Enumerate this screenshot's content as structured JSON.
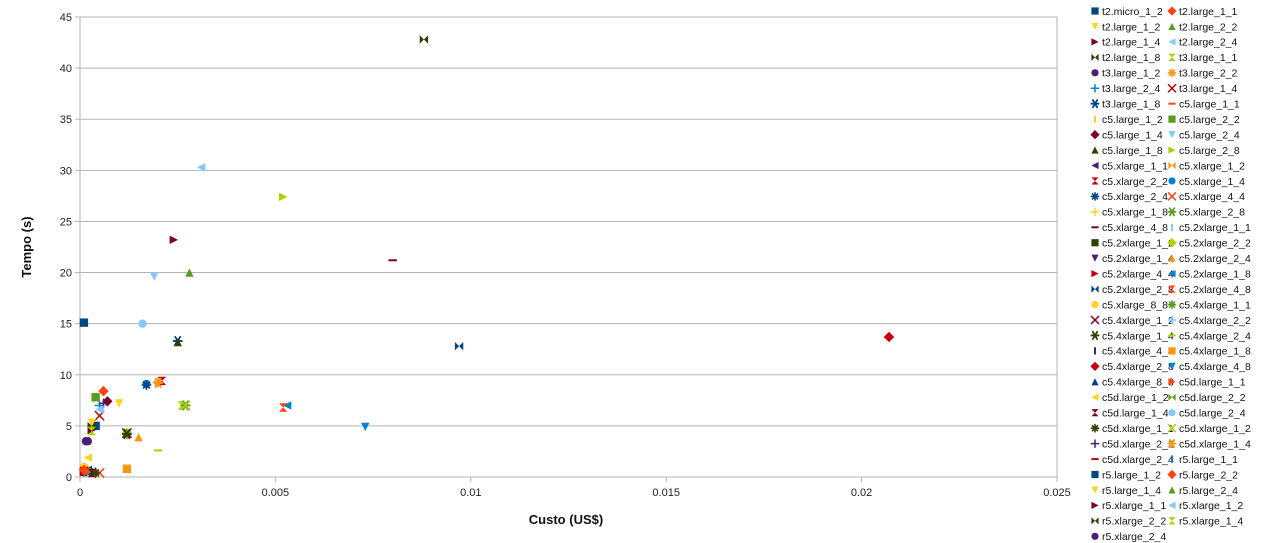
{
  "chart_data": {
    "type": "scatter",
    "title": "",
    "xlabel": "Custo (US$)",
    "ylabel": "Tempo (s)",
    "xlim": [
      0,
      0.025
    ],
    "ylim": [
      0,
      45
    ],
    "x_ticks": [
      "0",
      "0.005",
      "0.01",
      "0.015",
      "0.02",
      "0.025"
    ],
    "x_tick_values": [
      0,
      0.005,
      0.01,
      0.015,
      0.02,
      0.025
    ],
    "y_ticks": [
      "0",
      "5",
      "10",
      "15",
      "20",
      "25",
      "30",
      "35",
      "40",
      "45"
    ],
    "y_tick_values": [
      0,
      5,
      10,
      15,
      20,
      25,
      30,
      35,
      40,
      45
    ],
    "grid": "horizontal",
    "legend_position": "right",
    "series": [
      {
        "name": "t2.micro_1_2",
        "color": "#004586",
        "marker": "square",
        "points": [
          [
            0.0001,
            15.1
          ]
        ]
      },
      {
        "name": "t2.large_1_1",
        "color": "#ff420e",
        "marker": "diamond",
        "points": [
          [
            0.0006,
            8.4
          ]
        ]
      },
      {
        "name": "t2.large_1_2",
        "color": "#ffd320",
        "marker": "tri-down",
        "points": [
          [
            0.001,
            7.2
          ]
        ]
      },
      {
        "name": "t2.large_2_2",
        "color": "#579d1c",
        "marker": "tri-up",
        "points": [
          [
            0.0028,
            20.0
          ]
        ]
      },
      {
        "name": "t2.large_1_4",
        "color": "#7e0021",
        "marker": "tri-right",
        "points": [
          [
            0.0024,
            23.2
          ]
        ]
      },
      {
        "name": "t2.large_2_4",
        "color": "#83caff",
        "marker": "tri-left",
        "points": [
          [
            0.0031,
            30.3
          ]
        ]
      },
      {
        "name": "t2.large_1_8",
        "color": "#314004",
        "marker": "bowtie",
        "points": [
          [
            0.0088,
            42.8
          ]
        ]
      },
      {
        "name": "t3.large_1_1",
        "color": "#aecf00",
        "marker": "hourglass",
        "points": [
          [
            0.0026,
            7.0
          ]
        ]
      },
      {
        "name": "t3.large_1_2",
        "color": "#4b1f6f",
        "marker": "circle",
        "points": [
          [
            0.00015,
            3.5
          ]
        ]
      },
      {
        "name": "t3.large_2_2",
        "color": "#ff950e",
        "marker": "star",
        "points": [
          [
            0.002,
            9.3
          ]
        ]
      },
      {
        "name": "t3.large_2_4",
        "color": "#0084d1",
        "marker": "plus",
        "points": [
          [
            0.0005,
            7.0
          ]
        ]
      },
      {
        "name": "t3.large_1_4",
        "color": "#c5000b",
        "marker": "x",
        "points": [
          [
            0.0005,
            6.0
          ]
        ]
      },
      {
        "name": "t3.large_1_8",
        "color": "#004586",
        "marker": "asterisk",
        "points": [
          [
            0.0025,
            13.3
          ]
        ]
      },
      {
        "name": "c5.large_1_1",
        "color": "#ff420e",
        "marker": "hbar",
        "points": [
          [
            0.0003,
            0.6
          ]
        ]
      },
      {
        "name": "c5.large_1_2",
        "color": "#ffd320",
        "marker": "vbar",
        "points": [
          [
            0.0003,
            5.2
          ]
        ]
      },
      {
        "name": "c5.large_2_2",
        "color": "#579d1c",
        "marker": "square",
        "points": [
          [
            0.0004,
            7.8
          ]
        ]
      },
      {
        "name": "c5.large_1_4",
        "color": "#7e0021",
        "marker": "diamond",
        "points": [
          [
            0.0007,
            7.4
          ]
        ]
      },
      {
        "name": "c5.large_2_4",
        "color": "#83caff",
        "marker": "tri-down",
        "points": [
          [
            0.0019,
            19.6
          ]
        ]
      },
      {
        "name": "c5.large_1_8",
        "color": "#314004",
        "marker": "tri-up",
        "points": [
          [
            0.0025,
            13.2
          ]
        ]
      },
      {
        "name": "c5.large_2_8",
        "color": "#aecf00",
        "marker": "tri-right",
        "points": [
          [
            0.0052,
            27.4
          ]
        ]
      },
      {
        "name": "c5.xlarge_1_1",
        "color": "#4b1f6f",
        "marker": "tri-left",
        "points": [
          [
            0.0002,
            0.7
          ]
        ]
      },
      {
        "name": "c5.xlarge_1_2",
        "color": "#ff950e",
        "marker": "bowtie",
        "points": [
          [
            0.0003,
            0.5
          ]
        ]
      },
      {
        "name": "c5.xlarge_2_2",
        "color": "#c5000b",
        "marker": "hourglass",
        "points": [
          [
            0.0021,
            9.4
          ]
        ]
      },
      {
        "name": "c5.xlarge_1_4",
        "color": "#0084d1",
        "marker": "circle",
        "points": [
          [
            0.0017,
            9.1
          ]
        ]
      },
      {
        "name": "c5.xlarge_2_4",
        "color": "#004586",
        "marker": "star",
        "points": [
          [
            0.0017,
            9.0
          ]
        ]
      },
      {
        "name": "c5.xlarge_4_4",
        "color": "#ff420e",
        "marker": "x",
        "points": [
          [
            0.0005,
            0.4
          ]
        ]
      },
      {
        "name": "c5.xlarge_1_8",
        "color": "#ffd320",
        "marker": "plus",
        "points": [
          [
            0.0002,
            0.8
          ]
        ]
      },
      {
        "name": "c5.xlarge_2_8",
        "color": "#579d1c",
        "marker": "asterisk",
        "points": [
          [
            0.0027,
            7.0
          ]
        ]
      },
      {
        "name": "c5.xlarge_4_8",
        "color": "#7e0021",
        "marker": "hbar",
        "points": [
          [
            0.008,
            21.2
          ]
        ]
      },
      {
        "name": "c5.2xlarge_1_1",
        "color": "#83caff",
        "marker": "vbar",
        "points": [
          [
            0.0001,
            0.6
          ]
        ]
      },
      {
        "name": "c5.2xlarge_1_2",
        "color": "#314004",
        "marker": "square",
        "points": [
          [
            0.0001,
            0.5
          ]
        ]
      },
      {
        "name": "c5.2xlarge_2_2",
        "color": "#aecf00",
        "marker": "diamond",
        "points": [
          [
            0.0012,
            4.3
          ]
        ]
      },
      {
        "name": "c5.2xlarge_1_4",
        "color": "#4b1f6f",
        "marker": "tri-down",
        "points": [
          [
            0.0001,
            0.4
          ]
        ]
      },
      {
        "name": "c5.2xlarge_2_4",
        "color": "#ff950e",
        "marker": "tri-up",
        "points": [
          [
            0.0015,
            3.9
          ]
        ]
      },
      {
        "name": "c5.2xlarge_4_4",
        "color": "#c5000b",
        "marker": "tri-right",
        "points": [
          [
            0.0001,
            0.5
          ]
        ]
      },
      {
        "name": "c5.2xlarge_1_8",
        "color": "#0084d1",
        "marker": "tri-left",
        "points": [
          [
            0.0053,
            7.0
          ]
        ]
      },
      {
        "name": "c5.2xlarge_2_8",
        "color": "#004586",
        "marker": "bowtie",
        "points": [
          [
            0.0097,
            12.8
          ]
        ]
      },
      {
        "name": "c5.2xlarge_4_8",
        "color": "#ff420e",
        "marker": "hourglass",
        "points": [
          [
            0.0052,
            6.8
          ]
        ]
      },
      {
        "name": "c5.xlarge_8_8",
        "color": "#ffd320",
        "marker": "circle",
        "points": [
          [
            0.0001,
            1.0
          ]
        ]
      },
      {
        "name": "c5.4xlarge_1_1",
        "color": "#579d1c",
        "marker": "star",
        "points": [
          [
            0.0012,
            4.2
          ]
        ]
      },
      {
        "name": "c5.4xlarge_1_2",
        "color": "#7e0021",
        "marker": "x",
        "points": [
          [
            0.0012,
            4.3
          ]
        ]
      },
      {
        "name": "c5.4xlarge_2_2",
        "color": "#83caff",
        "marker": "plus",
        "points": [
          [
            0.0002,
            0.6
          ]
        ]
      },
      {
        "name": "c5.4xlarge_1_4",
        "color": "#314004",
        "marker": "asterisk",
        "points": [
          [
            0.0012,
            4.2
          ]
        ]
      },
      {
        "name": "c5.4xlarge_2_4",
        "color": "#aecf00",
        "marker": "hbar",
        "points": [
          [
            0.002,
            2.6
          ]
        ]
      },
      {
        "name": "c5.4xlarge_4_4",
        "color": "#4b1f6f",
        "marker": "vbar",
        "points": [
          [
            0.0001,
            0.5
          ]
        ]
      },
      {
        "name": "c5.4xlarge_1_8",
        "color": "#ff950e",
        "marker": "square",
        "points": [
          [
            0.0012,
            0.8
          ]
        ]
      },
      {
        "name": "c5.4xlarge_2_8",
        "color": "#c5000b",
        "marker": "diamond",
        "points": [
          [
            0.0207,
            13.7
          ]
        ]
      },
      {
        "name": "c5.4xlarge_4_8",
        "color": "#0084d1",
        "marker": "tri-down",
        "points": [
          [
            0.0073,
            4.9
          ]
        ]
      },
      {
        "name": "c5.4xlarge_8_8",
        "color": "#004586",
        "marker": "tri-up",
        "points": [
          [
            0.0003,
            0.6
          ]
        ]
      },
      {
        "name": "c5d.large_1_1",
        "color": "#ff420e",
        "marker": "tri-right",
        "points": [
          [
            0.0002,
            0.5
          ]
        ]
      },
      {
        "name": "c5d.large_1_2",
        "color": "#ffd320",
        "marker": "tri-left",
        "points": [
          [
            0.0002,
            1.9
          ]
        ]
      },
      {
        "name": "c5d.large_2_2",
        "color": "#579d1c",
        "marker": "bowtie",
        "points": [
          [
            0.0003,
            0.6
          ]
        ]
      },
      {
        "name": "c5d.large_1_4",
        "color": "#7e0021",
        "marker": "hourglass",
        "points": [
          [
            0.0003,
            0.4
          ]
        ]
      },
      {
        "name": "c5d.large_2_4",
        "color": "#83caff",
        "marker": "circle",
        "points": [
          [
            0.0016,
            15.0
          ]
        ]
      },
      {
        "name": "c5d.xlarge_1_1",
        "color": "#314004",
        "marker": "star",
        "points": [
          [
            0.0004,
            0.4
          ]
        ]
      },
      {
        "name": "c5d.xlarge_1_2",
        "color": "#aecf00",
        "marker": "x",
        "points": [
          [
            0.0027,
            7.0
          ]
        ]
      },
      {
        "name": "c5d.xlarge_2_2",
        "color": "#4b1f6f",
        "marker": "plus",
        "points": [
          [
            0.0006,
            7.2
          ]
        ]
      },
      {
        "name": "c5d.xlarge_1_4",
        "color": "#ff950e",
        "marker": "asterisk",
        "points": [
          [
            0.002,
            9.2
          ]
        ]
      },
      {
        "name": "c5d.xlarge_2_4",
        "color": "#c5000b",
        "marker": "hbar",
        "points": [
          [
            0.0001,
            0.9
          ]
        ]
      },
      {
        "name": "r5.large_1_1",
        "color": "#0084d1",
        "marker": "vbar",
        "points": [
          [
            0.0001,
            0.6
          ]
        ]
      },
      {
        "name": "r5.large_1_2",
        "color": "#004586",
        "marker": "square",
        "points": [
          [
            0.0004,
            5.0
          ]
        ]
      },
      {
        "name": "r5.large_2_2",
        "color": "#ff420e",
        "marker": "diamond",
        "points": [
          [
            0.0001,
            0.7
          ]
        ]
      },
      {
        "name": "r5.large_1_4",
        "color": "#ffd320",
        "marker": "tri-down",
        "points": [
          [
            0.0003,
            5.3
          ]
        ]
      },
      {
        "name": "r5.large_2_4",
        "color": "#579d1c",
        "marker": "tri-up",
        "points": [
          [
            0.0004,
            7.8
          ]
        ]
      },
      {
        "name": "r5.xlarge_1_1",
        "color": "#7e0021",
        "marker": "tri-right",
        "points": [
          [
            0.0003,
            4.6
          ]
        ]
      },
      {
        "name": "r5.xlarge_1_2",
        "color": "#83caff",
        "marker": "tri-left",
        "points": [
          [
            0.0005,
            6.6
          ]
        ]
      },
      {
        "name": "r5.xlarge_2_2",
        "color": "#314004",
        "marker": "bowtie",
        "points": [
          [
            0.0003,
            5.0
          ]
        ]
      },
      {
        "name": "r5.xlarge_1_4",
        "color": "#aecf00",
        "marker": "hourglass",
        "points": [
          [
            0.0003,
            4.5
          ]
        ]
      },
      {
        "name": "r5.xlarge_2_4",
        "color": "#4b1f6f",
        "marker": "circle",
        "points": [
          [
            0.0002,
            3.5
          ]
        ]
      }
    ]
  }
}
